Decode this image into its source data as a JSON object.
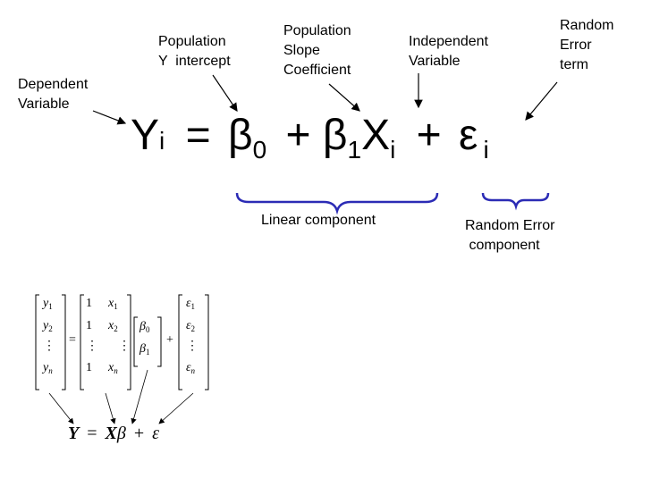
{
  "labels": {
    "dependent": "Dependent\nVariable",
    "intercept": "Population\nY  intercept",
    "slope": "Population\nSlope\nCoefficient",
    "independent": "Independent\nVariable",
    "random_term": "Random\nError\nterm",
    "linear_component": "Linear component",
    "random_component": "Random Error\n component"
  },
  "equation": {
    "Y": "Y",
    "i": "i",
    "eq": "=",
    "beta": "β",
    "zero": "0",
    "one": "1",
    "plus": "+",
    "X": "X",
    "eps": "ε"
  },
  "matrix": {
    "y1": "y",
    "s1": "1",
    "y2": "y",
    "s2": "2",
    "yn": "y",
    "sn": "n",
    "one": "1",
    "x1": "x",
    "x2": "x",
    "xn": "x",
    "b0": "β",
    "b1": "β",
    "e1": "ε",
    "e2": "ε",
    "en": "ε",
    "equals": "=",
    "plus": "+",
    "dots": "⋮"
  },
  "compact": {
    "Y": "Y",
    "eq": "=",
    "X": "X",
    "beta": "β",
    "plus": "+",
    "eps": "ε"
  }
}
